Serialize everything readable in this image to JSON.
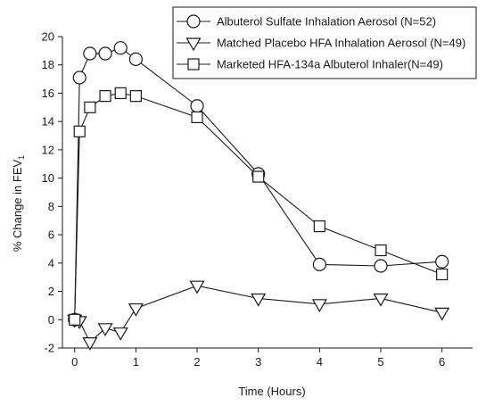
{
  "chart_data": {
    "type": "line",
    "xlabel": "Time (Hours)",
    "ylabel": "% Change in FEV",
    "ylabel_subscript": "1",
    "xlim": [
      -0.2,
      6.5
    ],
    "ylim": [
      -2,
      20
    ],
    "x_ticks": [
      0,
      1,
      2,
      3,
      4,
      5,
      6
    ],
    "y_ticks": [
      -2,
      0,
      2,
      4,
      6,
      8,
      10,
      12,
      14,
      16,
      18,
      20
    ],
    "grid": false,
    "legend_position": "top-right",
    "series": [
      {
        "name": "Albuterol Sulfate Inhalation Aerosol (N=52)",
        "marker": "circle",
        "x": [
          0,
          0.08,
          0.25,
          0.5,
          0.75,
          1,
          2,
          3,
          4,
          5,
          6
        ],
        "y": [
          0,
          17.1,
          18.8,
          18.8,
          19.2,
          18.4,
          15.1,
          10.3,
          3.9,
          3.8,
          4.1
        ]
      },
      {
        "name": "Matched Placebo HFA Inhalation Aerosol (N=49)",
        "marker": "triangle-down",
        "x": [
          0,
          0.08,
          0.25,
          0.5,
          0.75,
          1,
          2,
          3,
          4,
          5,
          6
        ],
        "y": [
          0,
          -0.1,
          -1.6,
          -0.6,
          -0.9,
          0.8,
          2.4,
          1.5,
          1.1,
          1.5,
          0.5
        ]
      },
      {
        "name": "Marketed HFA-134a Albuterol Inhaler(N=49)",
        "marker": "square",
        "x": [
          0,
          0.08,
          0.25,
          0.5,
          0.75,
          1,
          2,
          3,
          4,
          5,
          6
        ],
        "y": [
          0,
          13.3,
          15.0,
          15.8,
          16.0,
          15.8,
          14.3,
          10.1,
          6.6,
          4.9,
          3.2
        ]
      }
    ]
  }
}
